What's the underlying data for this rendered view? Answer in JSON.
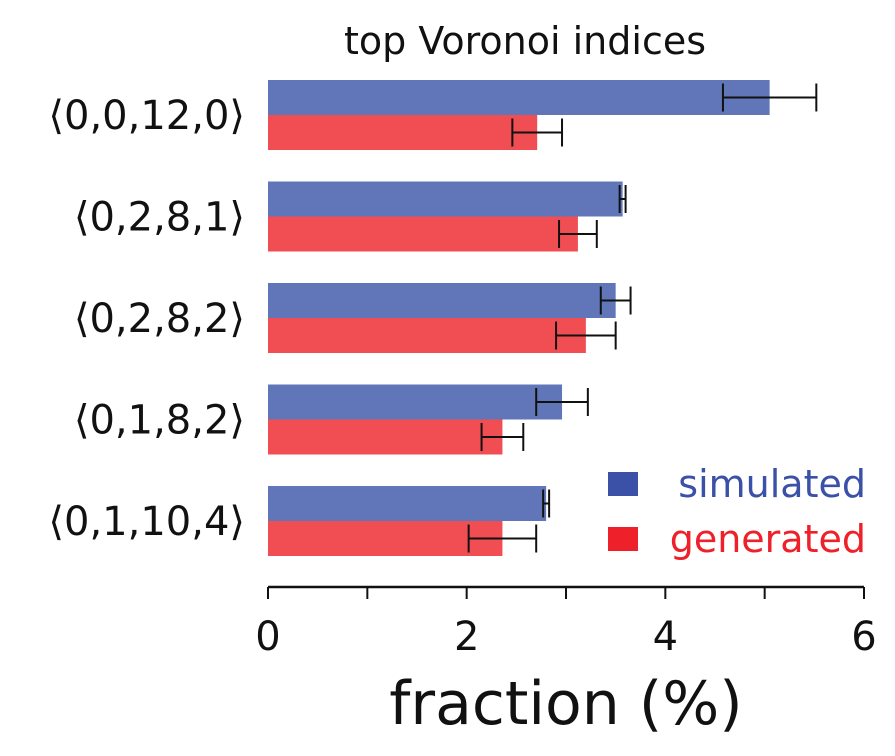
{
  "chart_data": {
    "type": "bar",
    "orientation": "horizontal",
    "title": "top Voronoi indices",
    "xlabel": "fraction (%)",
    "ylabel": "",
    "xlim": [
      0,
      6
    ],
    "xticks": [
      0,
      2,
      4,
      6
    ],
    "xtick_labels": [
      "0",
      "2",
      "4",
      "6"
    ],
    "categories": [
      "⟨0,0,12,0⟩",
      "⟨0,2,8,1⟩",
      "⟨0,2,8,2⟩",
      "⟨0,1,8,2⟩",
      "⟨0,1,10,4⟩"
    ],
    "series": [
      {
        "name": "simulated",
        "color": "#6176b8",
        "values": [
          5.05,
          3.57,
          3.5,
          2.96,
          2.8
        ],
        "errors": [
          0.47,
          0.03,
          0.15,
          0.26,
          0.03
        ]
      },
      {
        "name": "generated",
        "color": "#f14e53",
        "values": [
          2.71,
          3.12,
          3.2,
          2.36,
          2.36
        ],
        "errors": [
          0.25,
          0.19,
          0.3,
          0.21,
          0.34
        ]
      }
    ],
    "legend": {
      "position": "bottom-right",
      "items": [
        {
          "label": "simulated",
          "marker_color": "#3b51a8",
          "text_color": "#3b51a8"
        },
        {
          "label": "generated",
          "marker_color": "#ee2029",
          "text_color": "#ee2029"
        }
      ]
    },
    "grid": false
  }
}
